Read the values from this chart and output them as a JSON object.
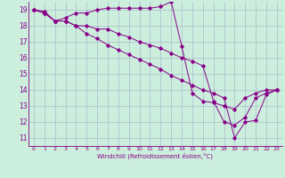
{
  "xlabel": "Windchill (Refroidissement éolien,°C)",
  "bg_color": "#cceedd",
  "grid_color": "#aabbcc",
  "line_color": "#880088",
  "xlim": [
    -0.5,
    23.5
  ],
  "ylim": [
    10.5,
    19.5
  ],
  "xticks": [
    0,
    1,
    2,
    3,
    4,
    5,
    6,
    7,
    8,
    9,
    10,
    11,
    12,
    13,
    14,
    15,
    16,
    17,
    18,
    19,
    20,
    21,
    22,
    23
  ],
  "yticks": [
    11,
    12,
    13,
    14,
    15,
    16,
    17,
    18,
    19
  ],
  "series1": [
    [
      0,
      19.0
    ],
    [
      1,
      18.9
    ],
    [
      2,
      18.3
    ],
    [
      3,
      18.5
    ],
    [
      4,
      18.8
    ],
    [
      5,
      18.8
    ],
    [
      6,
      19.0
    ],
    [
      7,
      19.1
    ],
    [
      8,
      19.1
    ],
    [
      9,
      19.1
    ],
    [
      10,
      19.1
    ],
    [
      11,
      19.1
    ],
    [
      12,
      19.2
    ],
    [
      13,
      19.5
    ],
    [
      14,
      16.7
    ],
    [
      15,
      13.8
    ],
    [
      16,
      13.3
    ],
    [
      17,
      13.2
    ],
    [
      18,
      13.0
    ],
    [
      19,
      12.8
    ],
    [
      20,
      13.5
    ],
    [
      21,
      13.8
    ],
    [
      22,
      14.0
    ],
    [
      23,
      14.0
    ]
  ],
  "series2": [
    [
      0,
      19.0
    ],
    [
      1,
      18.8
    ],
    [
      2,
      18.3
    ],
    [
      3,
      18.3
    ],
    [
      4,
      18.0
    ],
    [
      5,
      18.0
    ],
    [
      6,
      17.8
    ],
    [
      7,
      17.8
    ],
    [
      8,
      17.5
    ],
    [
      9,
      17.3
    ],
    [
      10,
      17.0
    ],
    [
      11,
      16.8
    ],
    [
      12,
      16.6
    ],
    [
      13,
      16.3
    ],
    [
      14,
      16.0
    ],
    [
      15,
      15.8
    ],
    [
      16,
      15.5
    ],
    [
      17,
      13.3
    ],
    [
      18,
      12.0
    ],
    [
      19,
      11.8
    ],
    [
      20,
      12.3
    ],
    [
      21,
      13.5
    ],
    [
      22,
      13.8
    ],
    [
      23,
      14.0
    ]
  ],
  "series3": [
    [
      0,
      19.0
    ],
    [
      1,
      18.8
    ],
    [
      2,
      18.3
    ],
    [
      3,
      18.3
    ],
    [
      4,
      18.0
    ],
    [
      5,
      17.5
    ],
    [
      6,
      17.2
    ],
    [
      7,
      16.8
    ],
    [
      8,
      16.5
    ],
    [
      9,
      16.2
    ],
    [
      10,
      15.9
    ],
    [
      11,
      15.6
    ],
    [
      12,
      15.3
    ],
    [
      13,
      14.9
    ],
    [
      14,
      14.6
    ],
    [
      15,
      14.3
    ],
    [
      16,
      14.0
    ],
    [
      17,
      13.8
    ],
    [
      18,
      13.5
    ],
    [
      19,
      11.0
    ],
    [
      20,
      12.0
    ],
    [
      21,
      12.1
    ],
    [
      22,
      13.7
    ],
    [
      23,
      14.0
    ]
  ]
}
